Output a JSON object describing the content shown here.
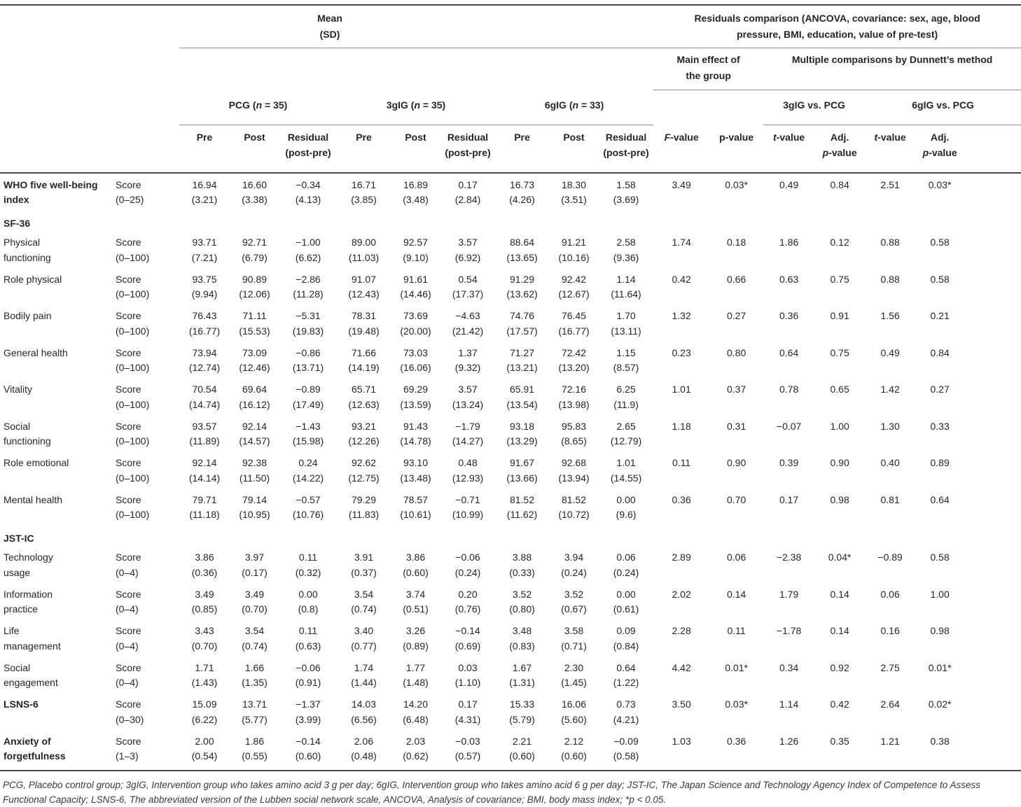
{
  "colors": {
    "rule_dark": "#4a4a4a",
    "rule_light": "#8f8f8f",
    "text": "#262626",
    "footnote_text": "#3a3a3a",
    "background": "#ffffff"
  },
  "header": {
    "mean": {
      "line1": "Mean",
      "line2": "(SD)"
    },
    "residuals": {
      "line1": "Residuals comparison (ANCOVA, covariance: sex, age, blood",
      "line2": "pressure, BMI, education, value of pre-test)"
    },
    "main_effect": {
      "line1": "Main effect of",
      "line2": "the group"
    },
    "dunnett": "Multiple comparisons by Dunnett’s method",
    "groups": [
      {
        "pre": "PCG (",
        "n": "n",
        "post": " = 35)"
      },
      {
        "pre": "3gIG (",
        "n": "n",
        "post": " = 35)"
      },
      {
        "pre": "6gIG (",
        "n": "n",
        "post": " = 33)"
      }
    ],
    "vs": [
      "3gIG vs. PCG",
      "6gIG vs. PCG"
    ],
    "subcols": {
      "pre": "Pre",
      "post": "Post",
      "residual_line1": "Residual",
      "residual_line2": "(post-pre)"
    },
    "stat_cols": {
      "f": {
        "letter": "F",
        "rest": "-value"
      },
      "p": {
        "letter": "p",
        "rest": "-value"
      },
      "t": {
        "letter": "t",
        "rest": "-value"
      },
      "adj_line1": "Adj.",
      "adj_letter": "p",
      "adj_rest": "-value"
    }
  },
  "rows": [
    {
      "type": "data",
      "bold": true,
      "label": [
        "WHO five well-being",
        "index"
      ],
      "score": [
        "Score",
        "(0–25)"
      ],
      "means": [
        [
          "16.94",
          "(3.21)"
        ],
        [
          "16.60",
          "(3.38)"
        ],
        [
          "−0.34",
          "(4.13)"
        ],
        [
          "16.71",
          "(3.85)"
        ],
        [
          "16.89",
          "(3.48)"
        ],
        [
          "0.17",
          "(2.84)"
        ],
        [
          "16.73",
          "(4.26)"
        ],
        [
          "18.30",
          "(3.51)"
        ],
        [
          "1.58",
          "(3.69)"
        ]
      ],
      "stats": [
        "3.49",
        "0.03*",
        "0.49",
        "0.84",
        "2.51",
        "0.03*"
      ]
    },
    {
      "type": "section",
      "label": "SF-36"
    },
    {
      "type": "data",
      "bold": false,
      "label": [
        "Physical",
        "functioning"
      ],
      "score": [
        "Score",
        "(0–100)"
      ],
      "means": [
        [
          "93.71",
          "(7.21)"
        ],
        [
          "92.71",
          "(6.79)"
        ],
        [
          "−1.00",
          "(6.62)"
        ],
        [
          "89.00",
          "(11.03)"
        ],
        [
          "92.57",
          "(9.10)"
        ],
        [
          "3.57",
          "(6.92)"
        ],
        [
          "88.64",
          "(13.65)"
        ],
        [
          "91.21",
          "(10.16)"
        ],
        [
          "2.58",
          "(9.36)"
        ]
      ],
      "stats": [
        "1.74",
        "0.18",
        "1.86",
        "0.12",
        "0.88",
        "0.58"
      ]
    },
    {
      "type": "data",
      "bold": false,
      "label": [
        "Role physical"
      ],
      "score": [
        "Score",
        "(0–100)"
      ],
      "means": [
        [
          "93.75",
          "(9.94)"
        ],
        [
          "90.89",
          "(12.06)"
        ],
        [
          "−2.86",
          "(11.28)"
        ],
        [
          "91.07",
          "(12.43)"
        ],
        [
          "91.61",
          "(14.46)"
        ],
        [
          "0.54",
          "(17.37)"
        ],
        [
          "91.29",
          "(13.62)"
        ],
        [
          "92.42",
          "(12.67)"
        ],
        [
          "1.14",
          "(11.64)"
        ]
      ],
      "stats": [
        "0.42",
        "0.66",
        "0.63",
        "0.75",
        "0.88",
        "0.58"
      ]
    },
    {
      "type": "data",
      "bold": false,
      "label": [
        "Bodily pain"
      ],
      "score": [
        "Score",
        "(0–100)"
      ],
      "means": [
        [
          "76.43",
          "(16.77)"
        ],
        [
          "71.11",
          "(15.53)"
        ],
        [
          "−5.31",
          "(19.83)"
        ],
        [
          "78.31",
          "(19.48)"
        ],
        [
          "73.69",
          "(20.00)"
        ],
        [
          "−4.63",
          "(21.42)"
        ],
        [
          "74.76",
          "(17.57)"
        ],
        [
          "76.45",
          "(16.77)"
        ],
        [
          "1.70",
          "(13.11)"
        ]
      ],
      "stats": [
        "1.32",
        "0.27",
        "0.36",
        "0.91",
        "1.56",
        "0.21"
      ]
    },
    {
      "type": "data",
      "bold": false,
      "label": [
        "General health"
      ],
      "score": [
        "Score",
        "(0–100)"
      ],
      "means": [
        [
          "73.94",
          "(12.74)"
        ],
        [
          "73.09",
          "(12.46)"
        ],
        [
          "−0.86",
          "(13.71)"
        ],
        [
          "71.66",
          "(14.19)"
        ],
        [
          "73.03",
          "(16.06)"
        ],
        [
          "1.37",
          "(9.32)"
        ],
        [
          "71.27",
          "(13.21)"
        ],
        [
          "72.42",
          "(13.20)"
        ],
        [
          "1.15",
          "(8.57)"
        ]
      ],
      "stats": [
        "0.23",
        "0.80",
        "0.64",
        "0.75",
        "0.49",
        "0.84"
      ]
    },
    {
      "type": "data",
      "bold": false,
      "label": [
        "Vitality"
      ],
      "score": [
        "Score",
        "(0–100)"
      ],
      "means": [
        [
          "70.54",
          "(14.74)"
        ],
        [
          "69.64",
          "(16.12)"
        ],
        [
          "−0.89",
          "(17.49)"
        ],
        [
          "65.71",
          "(12.63)"
        ],
        [
          "69.29",
          "(13.59)"
        ],
        [
          "3.57",
          "(13.24)"
        ],
        [
          "65.91",
          "(13.54)"
        ],
        [
          "72.16",
          "(13.98)"
        ],
        [
          "6.25",
          "(11.9)"
        ]
      ],
      "stats": [
        "1.01",
        "0.37",
        "0.78",
        "0.65",
        "1.42",
        "0.27"
      ]
    },
    {
      "type": "data",
      "bold": false,
      "label": [
        "Social",
        "functioning"
      ],
      "score": [
        "Score",
        "(0–100)"
      ],
      "means": [
        [
          "93.57",
          "(11.89)"
        ],
        [
          "92.14",
          "(14.57)"
        ],
        [
          "−1.43",
          "(15.98)"
        ],
        [
          "93.21",
          "(12.26)"
        ],
        [
          "91.43",
          "(14.78)"
        ],
        [
          "−1.79",
          "(14.27)"
        ],
        [
          "93.18",
          "(13.29)"
        ],
        [
          "95.83",
          "(8.65)"
        ],
        [
          "2.65",
          "(12.79)"
        ]
      ],
      "stats": [
        "1.18",
        "0.31",
        "−0.07",
        "1.00",
        "1.30",
        "0.33"
      ]
    },
    {
      "type": "data",
      "bold": false,
      "label": [
        "Role emotional"
      ],
      "score": [
        "Score",
        "(0–100)"
      ],
      "means": [
        [
          "92.14",
          "(14.14)"
        ],
        [
          "92.38",
          "(11.50)"
        ],
        [
          "0.24",
          "(14.22)"
        ],
        [
          "92.62",
          "(12.75)"
        ],
        [
          "93.10",
          "(13.48)"
        ],
        [
          "0.48",
          "(12.93)"
        ],
        [
          "91.67",
          "(13.66)"
        ],
        [
          "92.68",
          "(13.94)"
        ],
        [
          "1.01",
          "(14.55)"
        ]
      ],
      "stats": [
        "0.11",
        "0.90",
        "0.39",
        "0.90",
        "0.40",
        "0.89"
      ]
    },
    {
      "type": "data",
      "bold": false,
      "label": [
        "Mental health"
      ],
      "score": [
        "Score",
        "(0–100)"
      ],
      "means": [
        [
          "79.71",
          "(11.18)"
        ],
        [
          "79.14",
          "(10.95)"
        ],
        [
          "−0.57",
          "(10.76)"
        ],
        [
          "79.29",
          "(11.83)"
        ],
        [
          "78.57",
          "(10.61)"
        ],
        [
          "−0.71",
          "(10.99)"
        ],
        [
          "81.52",
          "(11.62)"
        ],
        [
          "81.52",
          "(10.72)"
        ],
        [
          "0.00",
          "(9.6)"
        ]
      ],
      "stats": [
        "0.36",
        "0.70",
        "0.17",
        "0.98",
        "0.81",
        "0.64"
      ]
    },
    {
      "type": "section",
      "label": "JST-IC"
    },
    {
      "type": "data",
      "bold": false,
      "label": [
        "Technology",
        "usage"
      ],
      "score": [
        "Score",
        "(0–4)"
      ],
      "means": [
        [
          "3.86",
          "(0.36)"
        ],
        [
          "3.97",
          "(0.17)"
        ],
        [
          "0.11",
          "(0.32)"
        ],
        [
          "3.91",
          "(0.37)"
        ],
        [
          "3.86",
          "(0.60)"
        ],
        [
          "−0.06",
          "(0.24)"
        ],
        [
          "3.88",
          "(0.33)"
        ],
        [
          "3.94",
          "(0.24)"
        ],
        [
          "0.06",
          "(0.24)"
        ]
      ],
      "stats": [
        "2.89",
        "0.06",
        "−2.38",
        "0.04*",
        "−0.89",
        "0.58"
      ]
    },
    {
      "type": "data",
      "bold": false,
      "label": [
        "Information",
        "practice"
      ],
      "score": [
        "Score",
        "(0–4)"
      ],
      "means": [
        [
          "3.49",
          "(0.85)"
        ],
        [
          "3.49",
          "(0.70)"
        ],
        [
          "0.00",
          "(0.8)"
        ],
        [
          "3.54",
          "(0.74)"
        ],
        [
          "3.74",
          "(0.51)"
        ],
        [
          "0.20",
          "(0.76)"
        ],
        [
          "3.52",
          "(0.80)"
        ],
        [
          "3.52",
          "(0.67)"
        ],
        [
          "0.00",
          "(0.61)"
        ]
      ],
      "stats": [
        "2.02",
        "0.14",
        "1.79",
        "0.14",
        "0.06",
        "1.00"
      ]
    },
    {
      "type": "data",
      "bold": false,
      "label": [
        "Life",
        "management"
      ],
      "score": [
        "Score",
        "(0–4)"
      ],
      "means": [
        [
          "3.43",
          "(0.70)"
        ],
        [
          "3.54",
          "(0.74)"
        ],
        [
          "0.11",
          "(0.63)"
        ],
        [
          "3.40",
          "(0.77)"
        ],
        [
          "3.26",
          "(0.89)"
        ],
        [
          "−0.14",
          "(0.69)"
        ],
        [
          "3.48",
          "(0.83)"
        ],
        [
          "3.58",
          "(0.71)"
        ],
        [
          "0.09",
          "(0.84)"
        ]
      ],
      "stats": [
        "2.28",
        "0.11",
        "−1.78",
        "0.14",
        "0.16",
        "0.98"
      ]
    },
    {
      "type": "data",
      "bold": false,
      "label": [
        "Social",
        "engagement"
      ],
      "score": [
        "Score",
        "(0–4)"
      ],
      "means": [
        [
          "1.71",
          "(1.43)"
        ],
        [
          "1.66",
          "(1.35)"
        ],
        [
          "−0.06",
          "(0.91)"
        ],
        [
          "1.74",
          "(1.44)"
        ],
        [
          "1.77",
          "(1.48)"
        ],
        [
          "0.03",
          "(1.10)"
        ],
        [
          "1.67",
          "(1.31)"
        ],
        [
          "2.30",
          "(1.45)"
        ],
        [
          "0.64",
          "(1.22)"
        ]
      ],
      "stats": [
        "4.42",
        "0.01*",
        "0.34",
        "0.92",
        "2.75",
        "0.01*"
      ]
    },
    {
      "type": "data",
      "bold": true,
      "label": [
        "LSNS-6"
      ],
      "score": [
        "Score",
        "(0–30)"
      ],
      "means": [
        [
          "15.09",
          "(6.22)"
        ],
        [
          "13.71",
          "(5.77)"
        ],
        [
          "−1.37",
          "(3.99)"
        ],
        [
          "14.03",
          "(6.56)"
        ],
        [
          "14.20",
          "(6.48)"
        ],
        [
          "0.17",
          "(4.31)"
        ],
        [
          "15.33",
          "(5.79)"
        ],
        [
          "16.06",
          "(5.60)"
        ],
        [
          "0.73",
          "(4.21)"
        ]
      ],
      "stats": [
        "3.50",
        "0.03*",
        "1.14",
        "0.42",
        "2.64",
        "0.02*"
      ]
    },
    {
      "type": "data",
      "bold": true,
      "label": [
        "Anxiety of",
        "forgetfulness"
      ],
      "score": [
        "Score",
        "(1–3)"
      ],
      "means": [
        [
          "2.00",
          "(0.54)"
        ],
        [
          "1.86",
          "(0.55)"
        ],
        [
          "−0.14",
          "(0.60)"
        ],
        [
          "2.06",
          "(0.48)"
        ],
        [
          "2.03",
          "(0.62)"
        ],
        [
          "−0.03",
          "(0.57)"
        ],
        [
          "2.21",
          "(0.60)"
        ],
        [
          "2.12",
          "(0.60)"
        ],
        [
          "−0.09",
          "(0.58)"
        ]
      ],
      "stats": [
        "1.03",
        "0.36",
        "1.26",
        "0.35",
        "1.21",
        "0.38"
      ]
    }
  ],
  "footnote": {
    "line1": "PCG, Placebo control group; 3gIG, Intervention group who takes amino acid 3 g per day; 6gIG, Intervention group who takes amino acid 6 g per day; JST-IC, The Japan Science and Technology Agency Index of Competence to Assess",
    "line2": "Functional Capacity; LSNS-6, The abbreviated version of the Lubben social network scale, ANCOVA, Analysis of covariance; BMI, body mass index; *p < 0.05."
  }
}
